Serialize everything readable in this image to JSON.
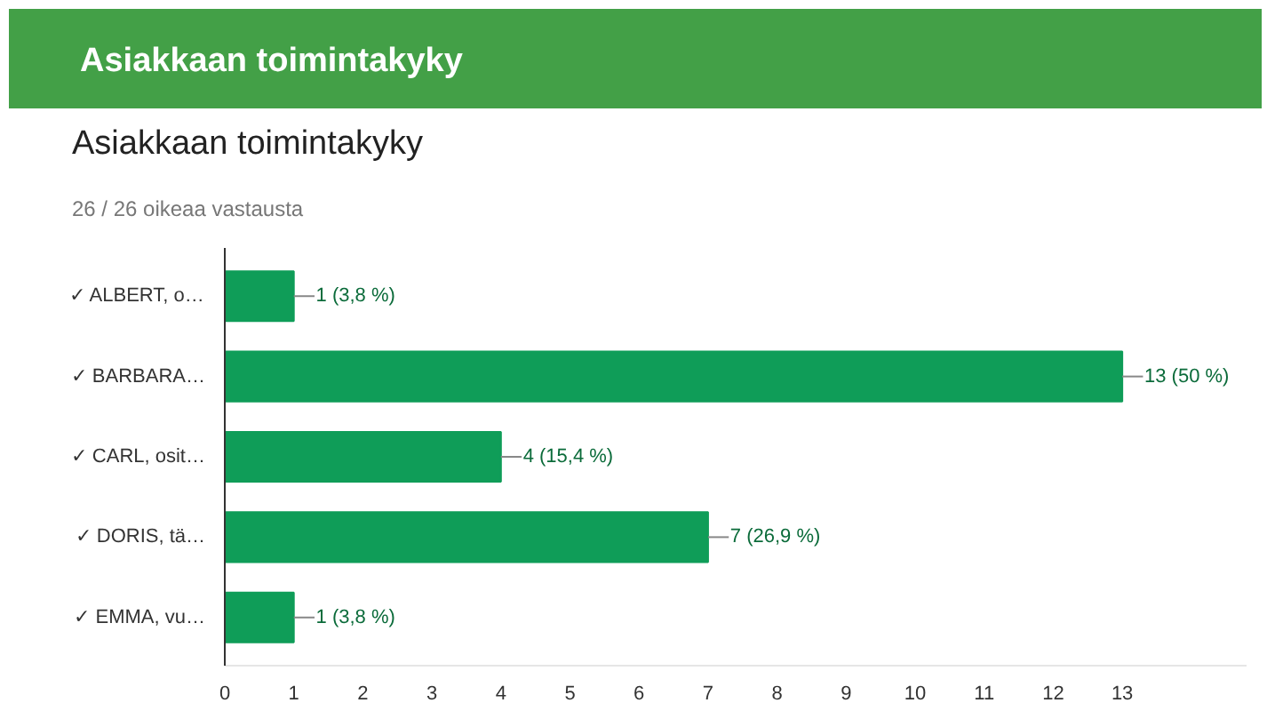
{
  "chart_data": {
    "type": "bar",
    "orientation": "horizontal",
    "title": "Asiakkaan toimintakyky",
    "subtitle": "26 / 26 oikeaa vastausta",
    "annotations": [
      "Asiakkaan toimintakyky"
    ],
    "categories": [
      "✓ ALBERT, o…",
      "✓ BARBARA…",
      "✓ CARL, osit…",
      "✓ DORIS, tä…",
      "✓ EMMA, vu…"
    ],
    "values": [
      1,
      13,
      4,
      7,
      1
    ],
    "color": "#0f9d58",
    "value_labels": [
      "1 (3,8 %)",
      "13 (50 %)",
      "4 (15,4 %)",
      "7 (26,9 %)",
      "1 (3,8 %)"
    ],
    "xlim": [
      0,
      14.8
    ],
    "xticks": [
      0,
      1,
      2,
      3,
      4,
      5,
      6,
      7,
      8,
      9,
      10,
      11,
      12,
      13
    ],
    "grid": false
  }
}
